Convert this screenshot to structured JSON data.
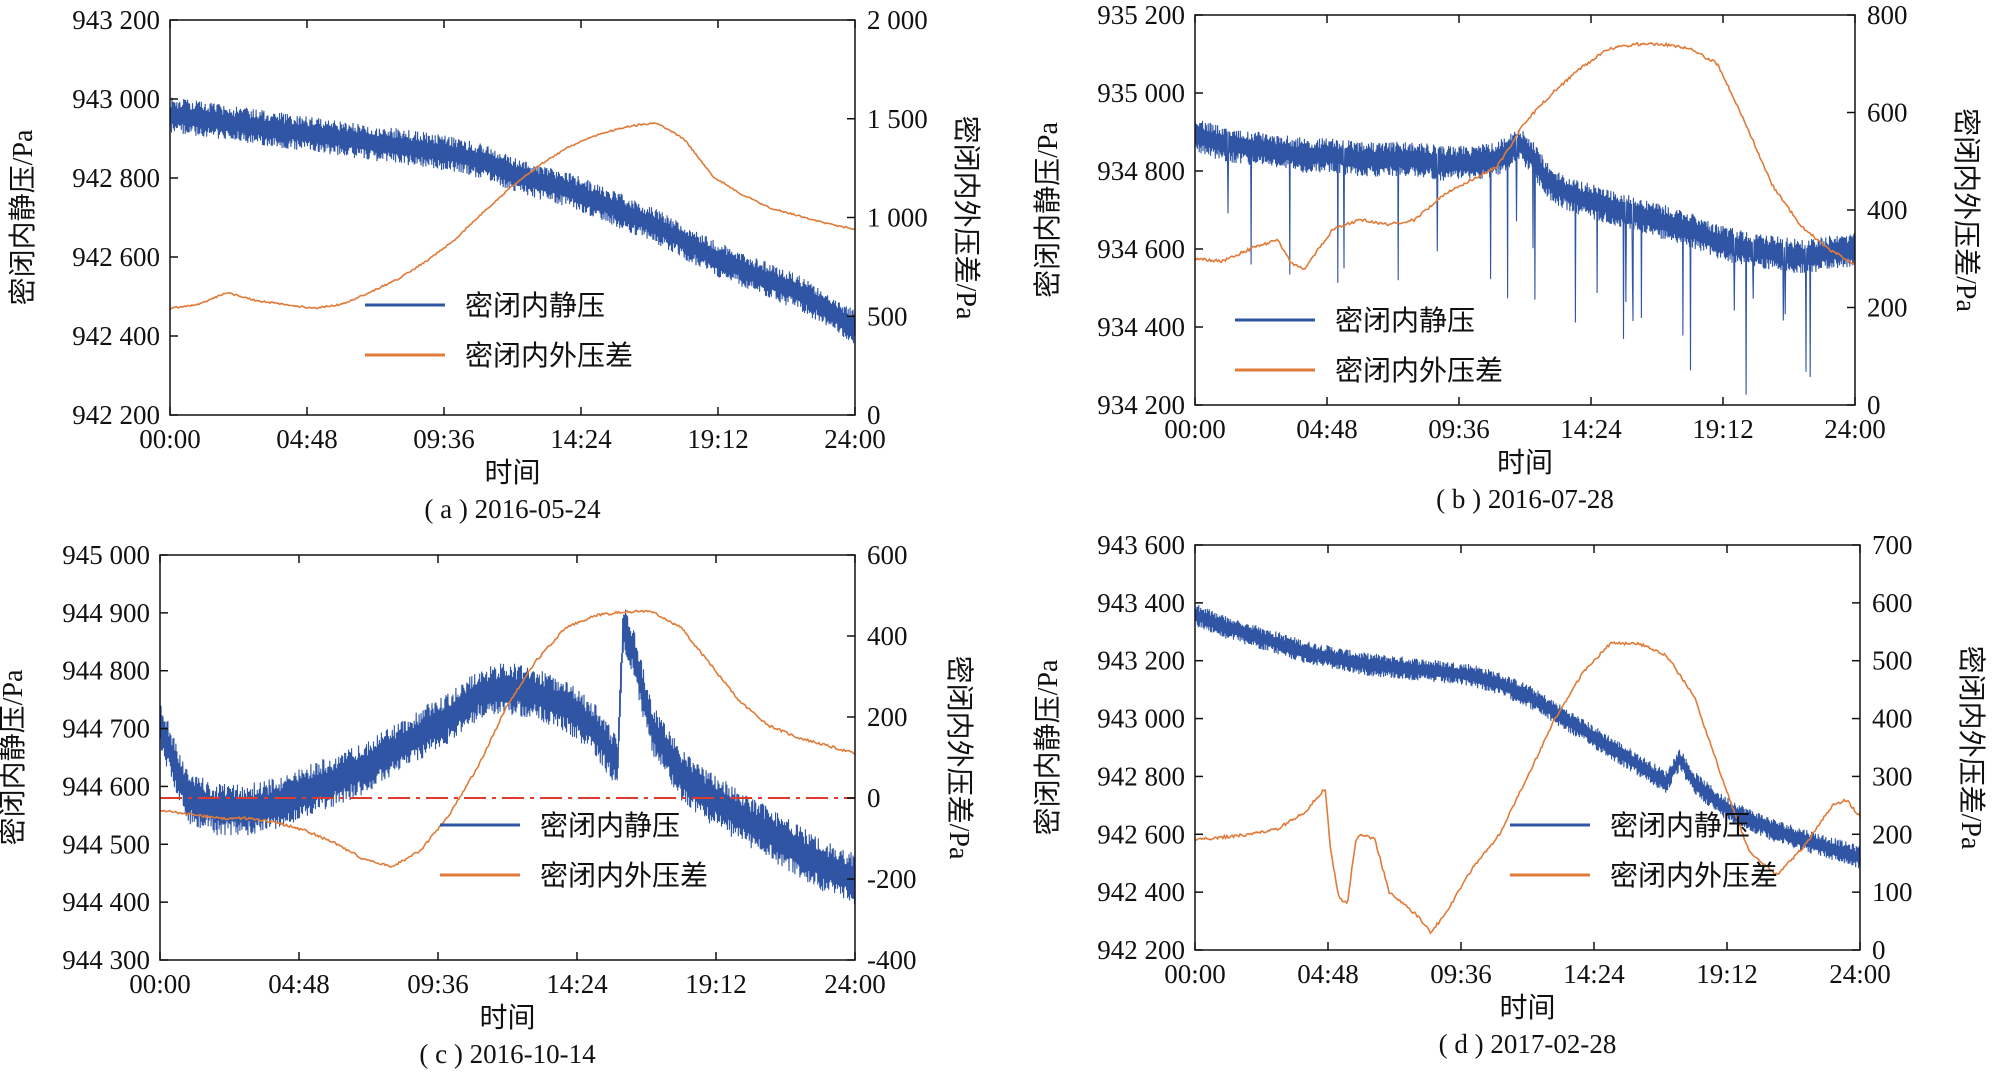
{
  "chart_data": [
    {
      "type": "line",
      "subtitle": "( a ) 2016-05-24",
      "xlabel": "时间",
      "ylabel_left": "密闭内静压/Pa",
      "ylabel_right": "密闭内外压差/Pa",
      "xlim": [
        0,
        24
      ],
      "ylim_left": [
        942200,
        943200
      ],
      "ylim_right": [
        0,
        2000
      ],
      "x_ticks": [
        "00:00",
        "04:48",
        "09:36",
        "14:24",
        "19:12",
        "24:00"
      ],
      "y_ticks_left": [
        "942 200",
        "942 400",
        "942 600",
        "942 800",
        "943 000",
        "943 200"
      ],
      "y_ticks_right": [
        "0",
        "500",
        "1 000",
        "1 500",
        "2 000"
      ],
      "legend_position": "bottom-center",
      "series": [
        {
          "name": "密闭内静压",
          "axis": "left",
          "color": "#2f55a4",
          "noise": 45,
          "x": [
            0,
            1,
            2,
            3,
            4,
            5,
            6,
            7,
            8,
            9,
            10,
            11,
            12,
            13,
            14,
            15,
            16,
            17,
            18,
            19,
            20,
            21,
            22,
            23,
            24
          ],
          "y": [
            942960,
            942950,
            942940,
            942930,
            942920,
            942910,
            942900,
            942890,
            942880,
            942870,
            942860,
            942840,
            942810,
            942790,
            942770,
            942740,
            942710,
            942680,
            942640,
            942600,
            942570,
            942540,
            942510,
            942470,
            942420
          ]
        },
        {
          "name": "密闭内外压差",
          "axis": "right",
          "color": "#e07b39",
          "noise": 8,
          "x": [
            0,
            1,
            2,
            3,
            4,
            5,
            6,
            7,
            8,
            9,
            10,
            11,
            12,
            13,
            14,
            15,
            16,
            17,
            18,
            19,
            20,
            21,
            22,
            23,
            24
          ],
          "y": [
            540,
            560,
            620,
            580,
            560,
            540,
            560,
            620,
            690,
            780,
            890,
            1030,
            1160,
            1270,
            1360,
            1420,
            1460,
            1480,
            1400,
            1210,
            1120,
            1050,
            1010,
            970,
            940
          ]
        }
      ]
    },
    {
      "type": "line",
      "subtitle": "( b ) 2016-07-28",
      "xlabel": "时间",
      "ylabel_left": "密闭内静压/Pa",
      "ylabel_right": "密闭内外压差/Pa",
      "xlim": [
        0,
        24
      ],
      "ylim_left": [
        934200,
        935200
      ],
      "ylim_right": [
        0,
        800
      ],
      "x_ticks": [
        "00:00",
        "04:48",
        "09:36",
        "14:24",
        "19:12",
        "24:00"
      ],
      "y_ticks_left": [
        "934 200",
        "934 400",
        "934 600",
        "934 800",
        "935 000",
        "935 200"
      ],
      "y_ticks_right": [
        "0",
        "200",
        "400",
        "600",
        "800"
      ],
      "legend_position": "bottom-center",
      "series": [
        {
          "name": "密闭内静压",
          "axis": "left",
          "color": "#2f55a4",
          "noise": 45,
          "x": [
            0,
            1,
            2,
            3,
            4,
            5,
            6,
            7,
            8,
            9,
            10,
            11,
            11.8,
            12.2,
            13,
            14,
            15,
            16,
            17,
            18,
            19,
            20,
            21,
            22,
            23,
            24
          ],
          "y": [
            934890,
            934870,
            934860,
            934850,
            934840,
            934840,
            934830,
            934830,
            934830,
            934820,
            934820,
            934830,
            934870,
            934840,
            934760,
            934730,
            934710,
            934690,
            934670,
            934650,
            934620,
            934600,
            934590,
            934580,
            934590,
            934600
          ]
        },
        {
          "name": "密闭内外压差",
          "axis": "right",
          "color": "#e07b39",
          "noise": 6,
          "x": [
            0,
            1,
            2,
            3,
            3.5,
            4,
            5,
            6,
            7,
            8,
            9,
            10,
            11,
            12,
            13,
            14,
            15,
            16,
            17,
            18,
            19,
            20,
            21,
            22,
            23,
            24
          ],
          "y": [
            300,
            295,
            320,
            340,
            290,
            280,
            360,
            380,
            370,
            380,
            430,
            460,
            490,
            580,
            640,
            690,
            730,
            740,
            740,
            730,
            700,
            580,
            450,
            370,
            320,
            290
          ]
        }
      ]
    },
    {
      "type": "line",
      "subtitle": "( c ) 2016-10-14",
      "xlabel": "时间",
      "ylabel_left": "密闭内静压/Pa",
      "ylabel_right": "密闭内外压差/Pa",
      "xlim": [
        0,
        24
      ],
      "ylim_left": [
        944300,
        945000
      ],
      "ylim_right": [
        -400,
        600
      ],
      "x_ticks": [
        "00:00",
        "04:48",
        "09:36",
        "14:24",
        "19:12",
        "24:00"
      ],
      "y_ticks_left": [
        "944 300",
        "944 400",
        "944 500",
        "944 600",
        "944 700",
        "944 800",
        "944 900",
        "945 000"
      ],
      "y_ticks_right": [
        "-400",
        "-200",
        "0",
        "200",
        "400",
        "600"
      ],
      "legend_position": "bottom-center",
      "reference_line": {
        "axis": "right",
        "y": 0,
        "color": "#e03a2f"
      },
      "series": [
        {
          "name": "密闭内静压",
          "axis": "left",
          "color": "#2f55a4",
          "noise": 45,
          "x": [
            0,
            0.5,
            1,
            2,
            3,
            4,
            5,
            6,
            7,
            8,
            9,
            10,
            11,
            12,
            13,
            14,
            15,
            15.8,
            16,
            16.3,
            17,
            18,
            19,
            20,
            21,
            22,
            23,
            24
          ],
          "y": [
            944710,
            944640,
            944580,
            944560,
            944560,
            944570,
            944590,
            944610,
            944630,
            944660,
            944690,
            944720,
            944760,
            944770,
            944760,
            944740,
            944700,
            944640,
            944880,
            944840,
            944700,
            944620,
            944580,
            944550,
            944520,
            944490,
            944460,
            944440
          ]
        },
        {
          "name": "密闭内外压差",
          "axis": "right",
          "color": "#e07b39",
          "noise": 6,
          "x": [
            0,
            1,
            2,
            3,
            4,
            5,
            6,
            7,
            8,
            9,
            10,
            11,
            12,
            13,
            14,
            15,
            16,
            17,
            18,
            19,
            20,
            21,
            22,
            23,
            24
          ],
          "y": [
            -30,
            -40,
            -50,
            -50,
            -60,
            -80,
            -110,
            -150,
            -170,
            -130,
            -40,
            80,
            230,
            340,
            420,
            450,
            460,
            460,
            420,
            330,
            240,
            180,
            150,
            130,
            110
          ]
        }
      ]
    },
    {
      "type": "line",
      "subtitle": "( d ) 2017-02-28",
      "xlabel": "时间",
      "ylabel_left": "密闭内静压/Pa",
      "ylabel_right": "密闭内外压差/Pa",
      "xlim": [
        0,
        24
      ],
      "ylim_left": [
        942200,
        943600
      ],
      "ylim_right": [
        0,
        700
      ],
      "x_ticks": [
        "00:00",
        "04:48",
        "09:36",
        "14:24",
        "19:12",
        "24:00"
      ],
      "y_ticks_left": [
        "942 200",
        "942 400",
        "942 600",
        "942 800",
        "943 000",
        "943 200",
        "943 400",
        "943 600"
      ],
      "y_ticks_right": [
        "0",
        "100",
        "200",
        "300",
        "400",
        "500",
        "600",
        "700"
      ],
      "legend_position": "bottom-right",
      "series": [
        {
          "name": "密闭内静压",
          "axis": "left",
          "color": "#2f55a4",
          "noise": 40,
          "x": [
            0,
            1,
            2,
            3,
            4,
            5,
            6,
            7,
            8,
            9,
            10,
            11,
            12,
            13,
            14,
            15,
            16,
            17,
            17.5,
            18,
            19,
            20,
            21,
            22,
            23,
            24
          ],
          "y": [
            943360,
            943320,
            943290,
            943260,
            943230,
            943210,
            943190,
            943180,
            943170,
            943160,
            943150,
            943120,
            943080,
            943020,
            942960,
            942900,
            942840,
            942780,
            942860,
            942780,
            942700,
            942650,
            942610,
            942580,
            942550,
            942520
          ]
        },
        {
          "name": "密闭内外压差",
          "axis": "right",
          "color": "#e07b39",
          "noise": 5,
          "x": [
            0,
            1,
            2,
            3,
            4,
            4.7,
            4.9,
            5.2,
            5.5,
            5.8,
            6,
            6.5,
            7,
            7.5,
            8,
            8.5,
            9,
            10,
            11,
            12,
            13,
            14,
            15,
            16,
            17,
            18,
            19,
            20,
            21,
            22,
            23,
            23.5,
            24
          ],
          "y": [
            190,
            195,
            200,
            210,
            240,
            280,
            170,
            90,
            80,
            190,
            200,
            190,
            100,
            80,
            60,
            30,
            60,
            140,
            200,
            300,
            400,
            480,
            530,
            530,
            510,
            440,
            300,
            170,
            130,
            180,
            250,
            260,
            230
          ]
        }
      ]
    }
  ]
}
